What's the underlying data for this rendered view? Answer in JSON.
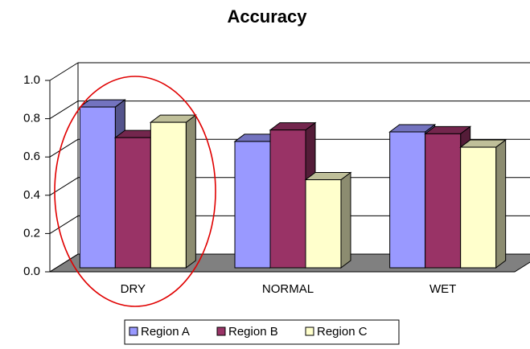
{
  "chart_data": {
    "type": "bar3d",
    "title": "Accuracy",
    "categories": [
      "DRY",
      "NORMAL",
      "WET"
    ],
    "series": [
      {
        "name": "Region A",
        "color": "#9999ff",
        "values": [
          0.84,
          0.66,
          0.71
        ]
      },
      {
        "name": "Region B",
        "color": "#993366",
        "values": [
          0.68,
          0.72,
          0.7
        ]
      },
      {
        "name": "Region C",
        "color": "#ffffcc",
        "values": [
          0.76,
          0.46,
          0.63
        ]
      }
    ],
    "ylim": [
      0,
      1
    ],
    "yticks": [
      {
        "value": 0,
        "label": "0.0"
      },
      0.2,
      0.4,
      0.6,
      0.8,
      {
        "value": 1,
        "label": "1.0"
      }
    ],
    "grid": true,
    "legend": "bottom"
  }
}
